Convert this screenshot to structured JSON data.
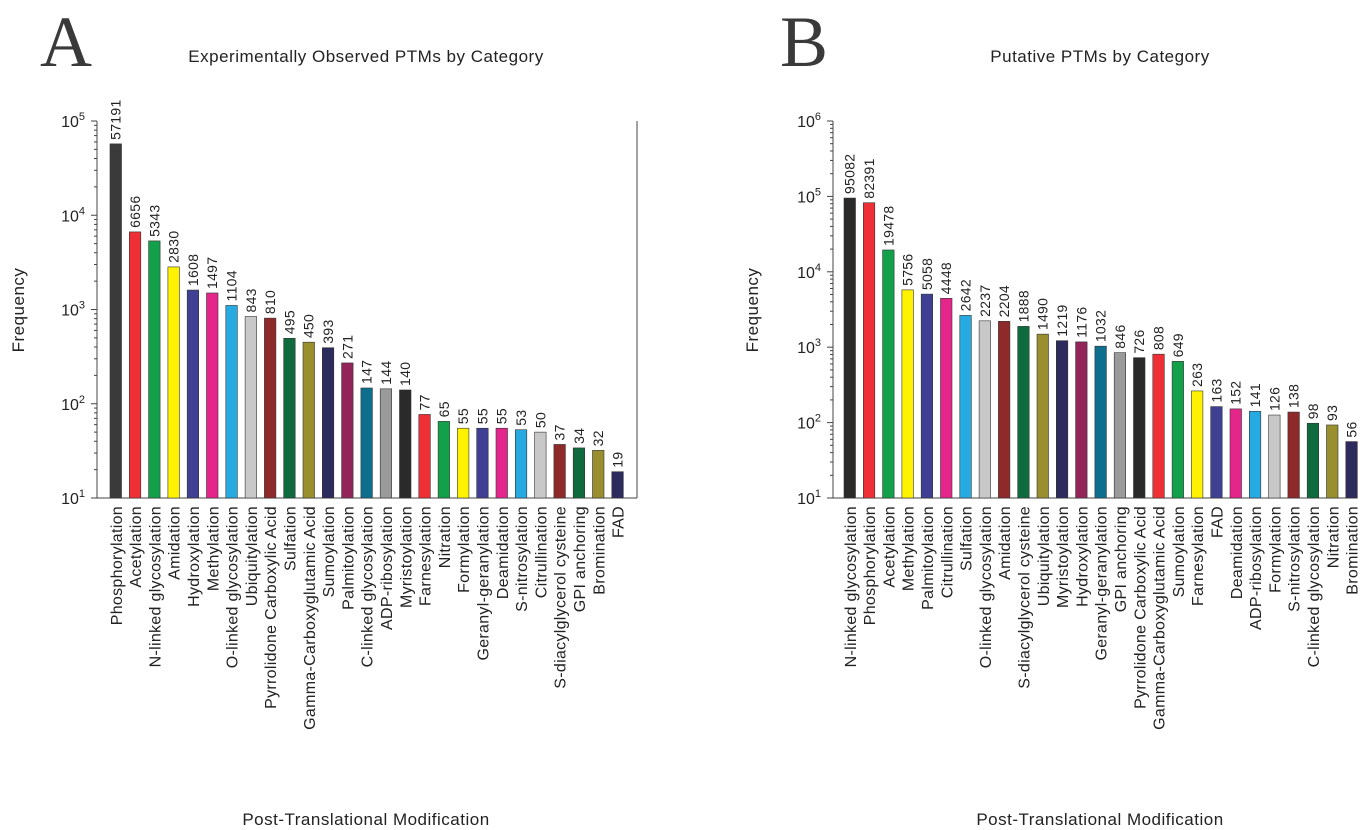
{
  "figure": {
    "panels": [
      {
        "letter": "A"
      },
      {
        "letter": "B"
      }
    ]
  },
  "chart_data": [
    {
      "type": "bar",
      "title": "Experimentally Observed PTMs by Category",
      "xlabel": "Post-Translational Modification",
      "ylabel": "Frequency",
      "yscale": "log",
      "ylim": [
        10,
        100000
      ],
      "yticks": [
        {
          "base": "10",
          "exp": "1"
        },
        {
          "base": "10",
          "exp": "2"
        },
        {
          "base": "10",
          "exp": "3"
        },
        {
          "base": "10",
          "exp": "4"
        },
        {
          "base": "10",
          "exp": "5"
        }
      ],
      "right_axis": true,
      "categories": [
        "Phosphorylation",
        "Acetylation",
        "N-linked glycosylation",
        "Amidation",
        "Hydroxylation",
        "Methylation",
        "O-linked glycosylation",
        "Ubiquitylation",
        "Pyrrolidone Carboxylic Acid",
        "Sulfation",
        "Gamma-Carboxyglutamic Acid",
        "Sumoylation",
        "Palmitoylation",
        "C-linked glycosylation",
        "ADP-ribosylation",
        "Myristoylation",
        "Farnesylation",
        "Nitration",
        "Formylation",
        "Geranyl-geranylation",
        "Deamidation",
        "S-nitrosylation",
        "Citrullination",
        "S-diacylglycerol cysteine",
        "GPI anchoring",
        "Bromination",
        "FAD"
      ],
      "values": [
        57191,
        6656,
        5343,
        2830,
        1608,
        1497,
        1104,
        843,
        810,
        495,
        450,
        393,
        271,
        147,
        144,
        140,
        77,
        65,
        55,
        55,
        55,
        53,
        50,
        37,
        34,
        32,
        19
      ],
      "value_labels": [
        "57191",
        "6656",
        "5343",
        "2830",
        "1608",
        "1497",
        "1104",
        "843",
        "810",
        "495",
        "450",
        "393",
        "271",
        "147",
        "144",
        "140",
        "77",
        "65",
        "55",
        "55",
        "55",
        "53",
        "50",
        "37",
        "34",
        "32",
        "19"
      ],
      "colors": [
        "#3a3a3a",
        "#ee3036",
        "#13a04a",
        "#fff200",
        "#3f3f94",
        "#e4268b",
        "#27aae1",
        "#c8c8c8",
        "#8e2a2a",
        "#0f6b3d",
        "#9a8f2e",
        "#2d2a5e",
        "#93245a",
        "#0e6e8e",
        "#9a9a9a",
        "#2a2a2a",
        "#ee3036",
        "#13a04a",
        "#fff200",
        "#3f3f94",
        "#e4268b",
        "#27aae1",
        "#c8c8c8",
        "#8e2a2a",
        "#0f6b3d",
        "#9a8f2e",
        "#2d2a5e"
      ]
    },
    {
      "type": "bar",
      "title": "Putative PTMs by Category",
      "xlabel": "Post-Translational Modification",
      "ylabel": "Frequency",
      "yscale": "log",
      "ylim": [
        10,
        1000000
      ],
      "yticks": [
        {
          "base": "10",
          "exp": "1"
        },
        {
          "base": "10",
          "exp": "2"
        },
        {
          "base": "10",
          "exp": "3"
        },
        {
          "base": "10",
          "exp": "4"
        },
        {
          "base": "10",
          "exp": "5"
        },
        {
          "base": "10",
          "exp": "6"
        }
      ],
      "right_axis": false,
      "categories": [
        "N-linked glycosylation",
        "Phosphorylation",
        "Acetylation",
        "Methylation",
        "Palmitoylation",
        "Citrullination",
        "Sulfation",
        "O-linked glycosylation",
        "Amidation",
        "S-diacylglycerol cysteine",
        "Ubiquitylation",
        "Myristoylation",
        "Hydroxylation",
        "Geranyl-geranylation",
        "GPI anchoring",
        "Pyrrolidone Carboxylic Acid",
        "Gamma-Carboxyglutamic Acid",
        "Sumoylation",
        "Farnesylation",
        "FAD",
        "Deamidation",
        "ADP-ribosylation",
        "Formylation",
        "S-nitrosylation",
        "C-linked glycosylation",
        "Nitration",
        "Bromination"
      ],
      "values": [
        95082,
        82391,
        19478,
        5756,
        5058,
        4448,
        2642,
        2237,
        2204,
        1888,
        1490,
        1219,
        1176,
        1032,
        846,
        726,
        808,
        649,
        263,
        163,
        152,
        141,
        126,
        138,
        98,
        93,
        56
      ],
      "value_labels": [
        "95082",
        "82391",
        "19478",
        "5756",
        "5058",
        "4448",
        "2642",
        "2237",
        "2204",
        "1888",
        "1490",
        "1219",
        "1176",
        "1032",
        "846",
        "726",
        "808",
        "649",
        "263",
        "163",
        "152",
        "141",
        "126",
        "138",
        "98",
        "93",
        "56"
      ],
      "colors": [
        "#2a2a2a",
        "#ee3036",
        "#13a04a",
        "#fff200",
        "#3f3f94",
        "#e4268b",
        "#27aae1",
        "#c8c8c8",
        "#8e2a2a",
        "#0f6b3d",
        "#9a8f2e",
        "#2d2a5e",
        "#93245a",
        "#0e6e8e",
        "#9a9a9a",
        "#2a2a2a",
        "#ee3036",
        "#13a04a",
        "#fff200",
        "#3f3f94",
        "#e4268b",
        "#27aae1",
        "#c8c8c8",
        "#8e2a2a",
        "#0f6b3d",
        "#9a8f2e",
        "#2d2a5e"
      ]
    }
  ]
}
